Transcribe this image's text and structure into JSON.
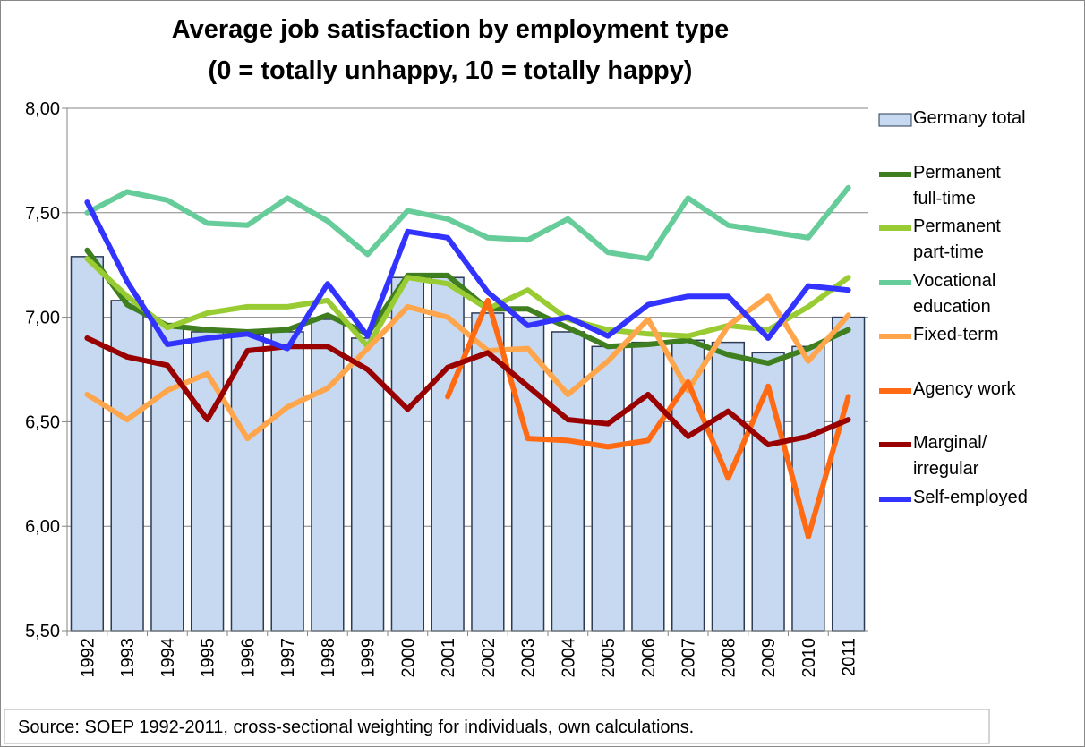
{
  "chart_data": {
    "type": "combo",
    "title": "Average job satisfaction by employment type",
    "subtitle": "(0 = totally unhappy, 10 = totally happy)",
    "source": "Source: SOEP 1992-2011, cross-sectional weighting for individuals, own calculations.",
    "categories": [
      "1992",
      "1993",
      "1994",
      "1995",
      "1996",
      "1997",
      "1998",
      "1999",
      "2000",
      "2001",
      "2002",
      "2003",
      "2004",
      "2005",
      "2006",
      "2007",
      "2008",
      "2009",
      "2010",
      "2011"
    ],
    "ylim": [
      5.5,
      8.0
    ],
    "yticks": [
      {
        "value": 5.5,
        "label": "5,50"
      },
      {
        "value": 6.0,
        "label": "6,00"
      },
      {
        "value": 6.5,
        "label": "6,50"
      },
      {
        "value": 7.0,
        "label": "7,00"
      },
      {
        "value": 7.5,
        "label": "7,50"
      },
      {
        "value": 8.0,
        "label": "8,00"
      }
    ],
    "grid": true,
    "legend": "right",
    "series": [
      {
        "name": "Germany total",
        "type": "bar",
        "color": "#c6d9f1",
        "values": [
          7.29,
          7.08,
          6.97,
          6.93,
          6.92,
          6.93,
          6.99,
          6.9,
          7.19,
          7.19,
          7.02,
          7.0,
          6.93,
          6.86,
          6.88,
          6.89,
          6.88,
          6.83,
          6.86,
          7.0
        ]
      },
      {
        "name": "Permanent full-time",
        "type": "line",
        "color": "#3f7f1f",
        "values": [
          7.32,
          7.06,
          6.96,
          6.94,
          6.93,
          6.94,
          7.01,
          6.92,
          7.2,
          7.2,
          7.04,
          7.04,
          6.95,
          6.86,
          6.87,
          6.89,
          6.82,
          6.78,
          6.85,
          6.94
        ]
      },
      {
        "name": "Permanent part-time",
        "type": "line",
        "color": "#99cc33",
        "values": [
          7.28,
          7.1,
          6.95,
          7.02,
          7.05,
          7.05,
          7.08,
          6.86,
          7.19,
          7.16,
          7.04,
          7.13,
          6.99,
          6.94,
          6.92,
          6.91,
          6.96,
          6.94,
          7.05,
          7.19
        ]
      },
      {
        "name": "Vocational education",
        "type": "line",
        "color": "#66cc99",
        "values": [
          7.5,
          7.6,
          7.56,
          7.45,
          7.44,
          7.57,
          7.46,
          7.3,
          7.51,
          7.47,
          7.38,
          7.37,
          7.47,
          7.31,
          7.28,
          7.57,
          7.44,
          7.41,
          7.38,
          7.62
        ]
      },
      {
        "name": "Fixed-term",
        "type": "line",
        "color": "#ffa64d",
        "values": [
          6.63,
          6.51,
          6.65,
          6.73,
          6.42,
          6.57,
          6.66,
          6.85,
          7.05,
          7.0,
          6.84,
          6.85,
          6.63,
          6.79,
          6.99,
          6.65,
          6.96,
          7.1,
          6.79,
          7.01
        ]
      },
      {
        "name": "Agency work",
        "type": "line",
        "color": "#ff6a13",
        "values": [
          null,
          null,
          null,
          null,
          null,
          null,
          null,
          null,
          null,
          6.62,
          7.08,
          6.42,
          6.41,
          6.38,
          6.41,
          6.69,
          6.23,
          6.67,
          5.95,
          6.62
        ]
      },
      {
        "name": "Marginal/ irregular",
        "type": "line",
        "color": "#990000",
        "values": [
          6.9,
          6.81,
          6.77,
          6.51,
          6.84,
          6.86,
          6.86,
          6.75,
          6.56,
          6.76,
          6.83,
          6.67,
          6.51,
          6.49,
          6.63,
          6.43,
          6.55,
          6.39,
          6.43,
          6.51
        ]
      },
      {
        "name": "Self-employed",
        "type": "line",
        "color": "#3333ff",
        "values": [
          7.55,
          7.17,
          6.87,
          6.9,
          6.92,
          6.85,
          7.16,
          6.91,
          7.41,
          7.38,
          7.12,
          6.96,
          7.0,
          6.91,
          7.06,
          7.1,
          7.1,
          6.9,
          7.15,
          7.13
        ]
      }
    ]
  }
}
